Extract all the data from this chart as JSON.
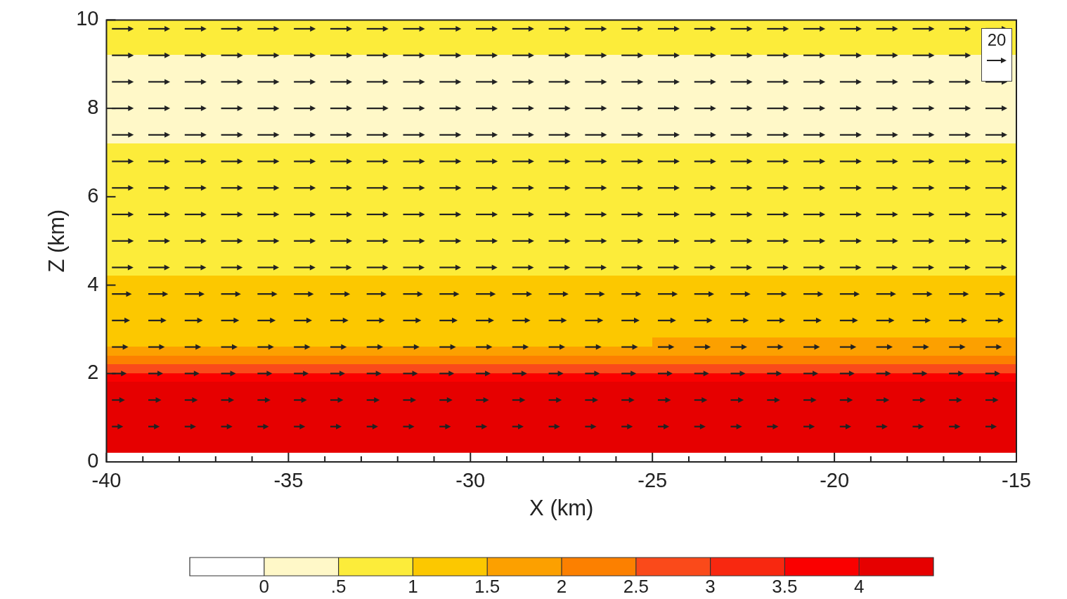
{
  "chart_data": {
    "type": "heatmap",
    "xlabel": "X (km)",
    "ylabel": "Z (km)",
    "xlim": [
      -40,
      -15
    ],
    "xticks": [
      -40,
      {
        "value": -39,
        "label": null
      },
      {
        "value": -38,
        "label": null
      },
      {
        "value": -37,
        "label": null
      },
      {
        "value": -36,
        "label": null
      },
      -35,
      {
        "value": -34,
        "label": null
      },
      {
        "value": -33,
        "label": null
      },
      {
        "value": -32,
        "label": null
      },
      {
        "value": -31,
        "label": null
      },
      -30,
      {
        "value": -29,
        "label": null
      },
      {
        "value": -28,
        "label": null
      },
      {
        "value": -27,
        "label": null
      },
      {
        "value": -26,
        "label": null
      },
      -25,
      {
        "value": -24,
        "label": null
      },
      {
        "value": -23,
        "label": null
      },
      {
        "value": -22,
        "label": null
      },
      {
        "value": -21,
        "label": null
      },
      -20,
      {
        "value": -19,
        "label": null
      },
      {
        "value": -18,
        "label": null
      },
      {
        "value": -17,
        "label": null
      },
      {
        "value": -16,
        "label": null
      },
      -15
    ],
    "ylim": [
      0,
      10
    ],
    "yticks": [
      0,
      2,
      4,
      6,
      8,
      10
    ],
    "clim": [
      -0.5,
      4.5
    ],
    "cticks": [
      {
        "value": 0,
        "label": "0"
      },
      {
        "value": 0.5,
        "label": ".5"
      },
      1,
      1.5,
      2,
      2.5,
      3,
      3.5,
      4
    ],
    "colors": [
      "#ffffff",
      "#fff8c8",
      "#fcec3a",
      "#fcc800",
      "#fca000",
      "#fc8000",
      "#fa4a1a",
      "#f82810",
      "#fa0000",
      "#e60000"
    ],
    "annotations": [
      "20"
    ],
    "cells": [
      [
        0.75,
        0.75,
        0.75,
        0.75,
        0.75
      ],
      [
        0.75,
        0.75,
        0.75,
        0.75,
        0.75
      ],
      [
        0.75,
        0.75,
        0.75,
        0.75,
        0.75
      ],
      [
        0.75,
        0.75,
        0.75,
        0.75,
        0.75
      ],
      [
        0.25,
        0.25,
        0.25,
        0.25,
        0.25
      ],
      [
        0.25,
        0.25,
        0.25,
        0.25,
        0.25
      ],
      [
        0.25,
        0.25,
        0.25,
        0.25,
        0.25
      ],
      [
        0.25,
        0.25,
        0.25,
        0.25,
        0.25
      ],
      [
        0.25,
        0.25,
        0.25,
        0.25,
        0.25
      ],
      [
        0.25,
        0.25,
        0.25,
        0.25,
        0.25
      ],
      [
        0.25,
        0.25,
        0.25,
        0.25,
        0.25
      ],
      [
        0.25,
        0.25,
        0.25,
        0.25,
        0.25
      ],
      [
        0.25,
        0.25,
        0.25,
        0.25,
        0.25
      ],
      [
        0.25,
        0.25,
        0.25,
        0.25,
        0.25
      ],
      [
        0.75,
        0.75,
        0.75,
        0.75,
        0.75
      ],
      [
        0.75,
        0.75,
        0.75,
        0.75,
        0.75
      ],
      [
        0.75,
        0.75,
        0.75,
        0.75,
        0.75
      ],
      [
        0.75,
        0.75,
        0.75,
        0.75,
        0.75
      ],
      [
        0.75,
        0.75,
        0.75,
        0.75,
        0.75
      ],
      [
        0.75,
        0.75,
        0.75,
        0.75,
        0.75
      ],
      [
        0.75,
        0.75,
        0.75,
        0.75,
        0.75
      ],
      [
        0.75,
        0.75,
        0.75,
        0.75,
        0.75
      ],
      [
        0.75,
        0.75,
        0.75,
        0.75,
        0.75
      ],
      [
        0.75,
        0.75,
        0.75,
        0.75,
        0.75
      ],
      [
        0.75,
        0.75,
        0.75,
        0.75,
        0.75
      ],
      [
        0.75,
        0.75,
        0.75,
        0.75,
        0.75
      ],
      [
        0.75,
        0.75,
        0.75,
        0.75,
        0.75
      ],
      [
        0.75,
        0.75,
        0.75,
        0.75,
        0.75
      ],
      [
        0.75,
        0.75,
        0.75,
        0.75,
        0.75
      ],
      [
        1.25,
        1.25,
        1.25,
        1.25,
        1.25
      ],
      [
        1.25,
        1.25,
        1.25,
        1.25,
        1.25
      ],
      [
        1.25,
        1.25,
        1.25,
        1.25,
        1.25
      ],
      [
        1.25,
        1.25,
        1.25,
        1.25,
        1.25
      ],
      [
        1.25,
        1.25,
        1.25,
        1.25,
        1.25
      ],
      [
        1.25,
        1.25,
        1.25,
        1.25,
        1.25
      ],
      [
        1.25,
        1.25,
        1.25,
        1.25,
        1.25
      ],
      [
        1.25,
        1.25,
        1.25,
        1.75,
        1.75
      ],
      [
        1.75,
        1.75,
        1.75,
        1.75,
        1.75
      ],
      [
        2.25,
        2.25,
        2.25,
        2.25,
        2.25
      ],
      [
        2.75,
        2.75,
        2.75,
        2.75,
        2.75
      ],
      [
        3.75,
        3.75,
        3.75,
        3.75,
        3.75
      ],
      [
        4.25,
        4.25,
        4.25,
        4.25,
        4.25
      ],
      [
        4.25,
        4.25,
        4.25,
        4.25,
        4.25
      ],
      [
        4.25,
        4.25,
        4.25,
        4.25,
        4.25
      ],
      [
        4.25,
        4.25,
        4.25,
        4.25,
        4.25
      ],
      [
        4.25,
        4.25,
        4.25,
        4.25,
        4.25
      ],
      [
        4.25,
        4.25,
        4.25,
        4.25,
        4.25
      ],
      [
        4.25,
        4.25,
        4.25,
        4.25,
        4.25
      ],
      [
        4.25,
        4.25,
        4.25,
        4.25,
        4.25
      ],
      [
        -0.25,
        -0.25,
        -0.25,
        -0.25,
        -0.25
      ]
    ]
  }
}
